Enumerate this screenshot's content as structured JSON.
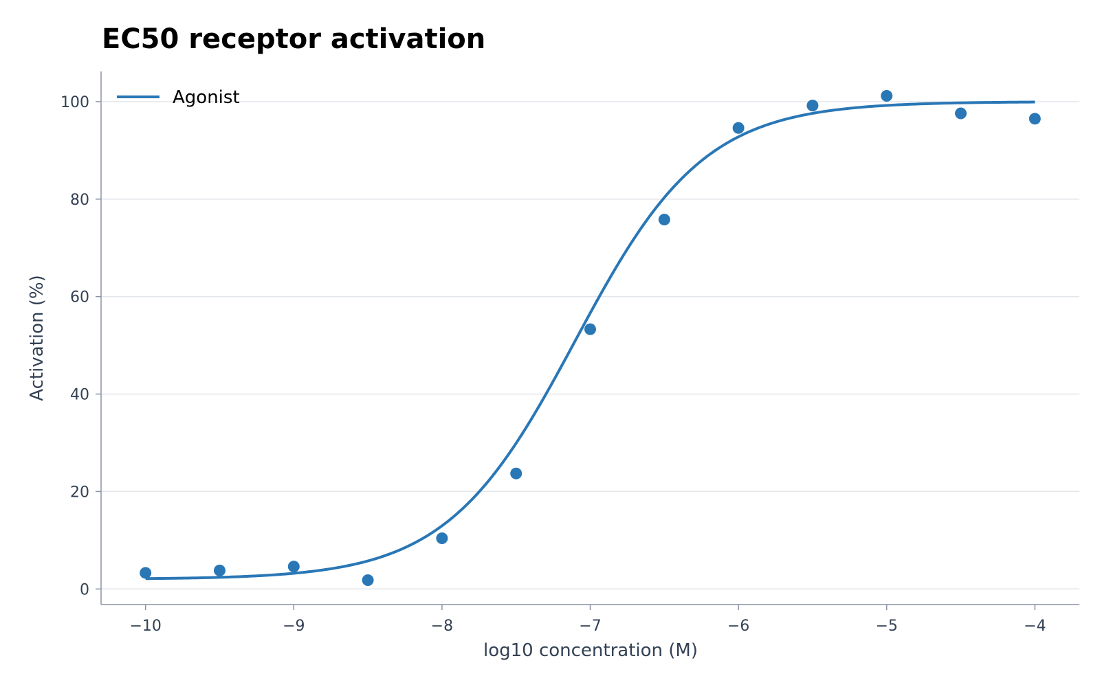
{
  "chart_data": {
    "type": "scatter",
    "title": "EC50 receptor activation",
    "xlabel": "log10 concentration (M)",
    "ylabel": "Activation (%)",
    "xlim": [
      -10.3,
      -3.7
    ],
    "ylim": [
      -3.2,
      106.2
    ],
    "x_ticks": [
      -10,
      -9,
      -8,
      -7,
      -6,
      -5,
      -4
    ],
    "x_tick_labels": [
      "−10",
      "−9",
      "−8",
      "−7",
      "−6",
      "−5",
      "−4"
    ],
    "y_ticks": [
      0,
      20,
      40,
      60,
      80,
      100
    ],
    "y_tick_labels": [
      "0",
      "20",
      "40",
      "60",
      "80",
      "100"
    ],
    "grid": "horizontal",
    "legend": {
      "placement": "top-left",
      "entries": [
        "Agonist"
      ]
    },
    "series": [
      {
        "name": "Agonist",
        "kind": "points",
        "color": "#2a77b6",
        "x": [
          -10,
          -9.5,
          -9,
          -8.5,
          -8,
          -7.5,
          -7,
          -6.5,
          -6,
          -5.5,
          -5,
          -4.5,
          -4
        ],
        "y": [
          3.3,
          3.8,
          4.6,
          1.8,
          10.4,
          23.7,
          53.3,
          75.8,
          94.6,
          99.2,
          101.2,
          97.6,
          96.5
        ]
      },
      {
        "name": "Agonist",
        "kind": "fit-curve",
        "color": "#2a77b6",
        "model": "four-parameter logistic",
        "bottom": 2,
        "top": 100,
        "log_ec50": -7.1,
        "hill": 1,
        "x_range": [
          -10,
          -4
        ]
      }
    ]
  }
}
